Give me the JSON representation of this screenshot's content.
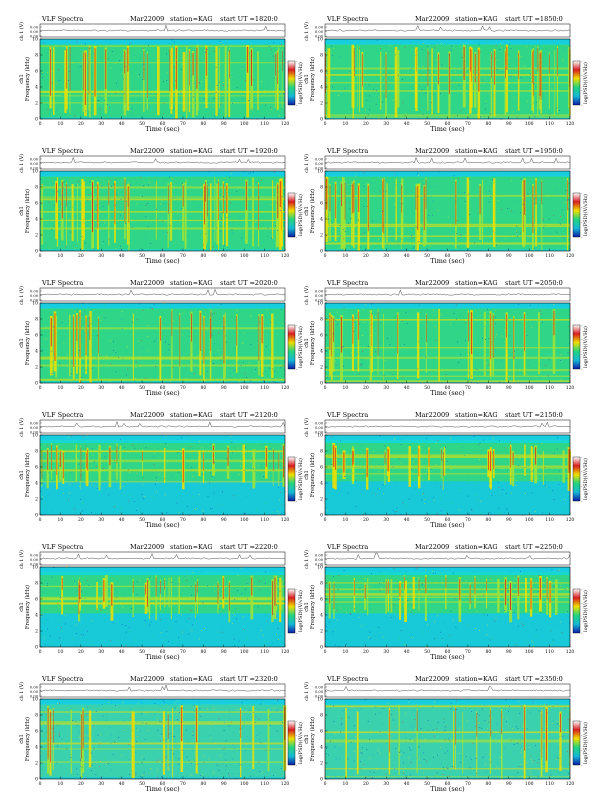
{
  "colors": {
    "spectrogram_background": "#17d7d2",
    "waveform_line": "#000000",
    "colorbar_gradient": [
      "#ffffff",
      "#d81e1e",
      "#f0e000",
      "#22d37e",
      "#16b9d6",
      "#0a1aa6"
    ]
  },
  "chart_data": [
    {
      "type": "heatmap",
      "header": {
        "left": "VLF Spectra",
        "date": "Mar22009",
        "station": "station=KAG",
        "start": "start  UT  =1820:0"
      },
      "waveform_ylabel": "ch 1 (V)",
      "waveform_ticks": [
        "0.00",
        "0.00",
        "0.00"
      ],
      "ylabel": "ch1\nFrequency (kHz)",
      "ylim": [
        0,
        10
      ],
      "yticks": [
        "0",
        "2",
        "4",
        "6",
        "8",
        "10"
      ],
      "xlabel": "Time (sec)",
      "xlim": [
        0,
        120
      ],
      "xticks": [
        "0",
        "10",
        "20",
        "30",
        "40",
        "50",
        "60",
        "70",
        "80",
        "90",
        "100",
        "110",
        "120"
      ],
      "colorbar_label": "log(PSD)(V/√Hz)",
      "colorbar_ticks": [
        "-",
        "-",
        "-",
        "-"
      ],
      "activity": "high"
    },
    {
      "type": "heatmap",
      "header": {
        "left": "VLF Spectra",
        "date": "Mar22009",
        "station": "station=KAG",
        "start": "start  UT  =1850:0"
      },
      "waveform_ylabel": "ch 1 (V)",
      "waveform_ticks": [
        "0.00",
        "0.00",
        "0.00"
      ],
      "ylabel": "ch1\nFrequency (kHz)",
      "ylim": [
        0,
        10
      ],
      "yticks": [
        "0",
        "2",
        "4",
        "6",
        "8",
        "10"
      ],
      "xlabel": "Time (sec)",
      "xlim": [
        0,
        120
      ],
      "xticks": [
        "0",
        "10",
        "20",
        "30",
        "40",
        "50",
        "60",
        "70",
        "80",
        "90",
        "100",
        "110",
        "120"
      ],
      "colorbar_label": "log(PSD)(V/√Hz)",
      "colorbar_ticks": [
        "-",
        "-",
        "-",
        "-"
      ],
      "activity": "high"
    },
    {
      "type": "heatmap",
      "header": {
        "left": "VLF Spectra",
        "date": "Mar22009",
        "station": "station=KAG",
        "start": "start  UT  =1920:0"
      },
      "waveform_ylabel": "ch 1 (V)",
      "waveform_ticks": [
        "0.00",
        "0.00",
        "0.00"
      ],
      "ylabel": "ch1\nFrequency (kHz)",
      "ylim": [
        0,
        10
      ],
      "yticks": [
        "0",
        "2",
        "4",
        "6",
        "8",
        "10"
      ],
      "xlabel": "Time (sec)",
      "xlim": [
        0,
        120
      ],
      "xticks": [
        "0",
        "10",
        "20",
        "30",
        "40",
        "50",
        "60",
        "70",
        "80",
        "90",
        "100",
        "110",
        "120"
      ],
      "colorbar_label": "log(PSD)(V/√Hz)",
      "colorbar_ticks": [
        "-",
        "-",
        "-",
        "-"
      ],
      "activity": "high"
    },
    {
      "type": "heatmap",
      "header": {
        "left": "VLF Spectra",
        "date": "Mar22009",
        "station": "station=KAG",
        "start": "start  UT  =1950:0"
      },
      "waveform_ylabel": "ch 1 (V)",
      "waveform_ticks": [
        "0.00",
        "0.00",
        "0.00"
      ],
      "ylabel": "ch1\nFrequency (kHz)",
      "ylim": [
        0,
        10
      ],
      "yticks": [
        "0",
        "2",
        "4",
        "6",
        "8",
        "10"
      ],
      "xlabel": "Time (sec)",
      "xlim": [
        0,
        120
      ],
      "xticks": [
        "0",
        "10",
        "20",
        "30",
        "40",
        "50",
        "60",
        "70",
        "80",
        "90",
        "100",
        "110",
        "120"
      ],
      "colorbar_label": "log(PSD)(V/√Hz)",
      "colorbar_ticks": [
        "-",
        "-",
        "-",
        "-"
      ],
      "activity": "high"
    },
    {
      "type": "heatmap",
      "header": {
        "left": "VLF Spectra",
        "date": "Mar22009",
        "station": "station=KAG",
        "start": "start  UT  =2020:0"
      },
      "waveform_ylabel": "ch 1 (V)",
      "waveform_ticks": [
        "0.00",
        "0.00",
        "0.00"
      ],
      "ylabel": "ch1\nFrequency (kHz)",
      "ylim": [
        0,
        10
      ],
      "yticks": [
        "0",
        "2",
        "4",
        "6",
        "8",
        "10"
      ],
      "xlabel": "Time (sec)",
      "xlim": [
        0,
        120
      ],
      "xticks": [
        "0",
        "10",
        "20",
        "30",
        "40",
        "50",
        "60",
        "70",
        "80",
        "90",
        "100",
        "110",
        "120"
      ],
      "colorbar_label": "log(PSD)(V/√Hz)",
      "colorbar_ticks": [
        "-",
        "-",
        "-",
        "-"
      ],
      "activity": "medium"
    },
    {
      "type": "heatmap",
      "header": {
        "left": "VLF Spectra",
        "date": "Mar22009",
        "station": "station=KAG",
        "start": "start  UT  =2050:0"
      },
      "waveform_ylabel": "ch 1 (V)",
      "waveform_ticks": [
        "0.00",
        "0.00",
        "0.00"
      ],
      "ylabel": "ch1\nFrequency (kHz)",
      "ylim": [
        0,
        10
      ],
      "yticks": [
        "0",
        "2",
        "4",
        "6",
        "8",
        "10"
      ],
      "xlabel": "Time (sec)",
      "xlim": [
        0,
        120
      ],
      "xticks": [
        "0",
        "10",
        "20",
        "30",
        "40",
        "50",
        "60",
        "70",
        "80",
        "90",
        "100",
        "110",
        "120"
      ],
      "colorbar_label": "log(PSD)(V/√Hz)",
      "colorbar_ticks": [
        "-",
        "-",
        "-",
        "-"
      ],
      "activity": "medium"
    },
    {
      "type": "heatmap",
      "header": {
        "left": "VLF Spectra",
        "date": "Mar22009",
        "station": "station=KAG",
        "start": "start  UT  =2120:0"
      },
      "waveform_ylabel": "ch 1 (V)",
      "waveform_ticks": [
        "0.00",
        "0.00",
        "0.00"
      ],
      "ylabel": "ch1\nFrequency (kHz)",
      "ylim": [
        0,
        10
      ],
      "yticks": [
        "0",
        "2",
        "4",
        "6",
        "8",
        "10"
      ],
      "xlabel": "Time (sec)",
      "xlim": [
        0,
        120
      ],
      "xticks": [
        "0",
        "10",
        "20",
        "30",
        "40",
        "50",
        "60",
        "70",
        "80",
        "90",
        "100",
        "110",
        "120"
      ],
      "colorbar_label": "log(PSD)(V/√Hz)",
      "colorbar_ticks": [
        "-",
        "-",
        "-",
        "-"
      ],
      "activity": "banded"
    },
    {
      "type": "heatmap",
      "header": {
        "left": "VLF Spectra",
        "date": "Mar22009",
        "station": "station=KAG",
        "start": "start  UT  =2150:0"
      },
      "waveform_ylabel": "ch 1 (V)",
      "waveform_ticks": [
        "0.00",
        "0.00",
        "0.00"
      ],
      "ylabel": "ch1\nFrequency (kHz)",
      "ylim": [
        0,
        10
      ],
      "yticks": [
        "0",
        "2",
        "4",
        "6",
        "8",
        "10"
      ],
      "xlabel": "Time (sec)",
      "xlim": [
        0,
        120
      ],
      "xticks": [
        "0",
        "10",
        "20",
        "30",
        "40",
        "50",
        "60",
        "70",
        "80",
        "90",
        "100",
        "110",
        "120"
      ],
      "colorbar_label": "log(PSD)(V/√Hz)",
      "colorbar_ticks": [
        "-",
        "-",
        "-",
        "-"
      ],
      "activity": "banded"
    },
    {
      "type": "heatmap",
      "header": {
        "left": "VLF Spectra",
        "date": "Mar22009",
        "station": "station=KAG",
        "start": "start  UT  =2220:0"
      },
      "waveform_ylabel": "ch 1 (V)",
      "waveform_ticks": [
        "0.00",
        "0.00",
        "0.00"
      ],
      "ylabel": "ch1\nFrequency (kHz)",
      "ylim": [
        0,
        10
      ],
      "yticks": [
        "0",
        "2",
        "4",
        "6",
        "8",
        "10"
      ],
      "xlabel": "Time (sec)",
      "xlim": [
        0,
        120
      ],
      "xticks": [
        "0",
        "10",
        "20",
        "30",
        "40",
        "50",
        "60",
        "70",
        "80",
        "90",
        "100",
        "110",
        "120"
      ],
      "colorbar_label": "log(PSD)(V/√Hz)",
      "colorbar_ticks": [
        "-",
        "-",
        "-",
        "-"
      ],
      "activity": "banded"
    },
    {
      "type": "heatmap",
      "header": {
        "left": "VLF Spectra",
        "date": "Mar22009",
        "station": "station=KAG",
        "start": "start  UT  =2250:0"
      },
      "waveform_ylabel": "ch 1 (V)",
      "waveform_ticks": [
        "0.00",
        "0.00",
        "0.00"
      ],
      "ylabel": "ch1\nFrequency (kHz)",
      "ylim": [
        0,
        10
      ],
      "yticks": [
        "0",
        "2",
        "4",
        "6",
        "8",
        "10"
      ],
      "xlabel": "Time (sec)",
      "xlim": [
        0,
        120
      ],
      "xticks": [
        "0",
        "10",
        "20",
        "30",
        "40",
        "50",
        "60",
        "70",
        "80",
        "90",
        "100",
        "110",
        "120"
      ],
      "colorbar_label": "log(PSD)(V/√Hz)",
      "colorbar_ticks": [
        "-",
        "-",
        "-",
        "-"
      ],
      "activity": "banded"
    },
    {
      "type": "heatmap",
      "header": {
        "left": "VLF Spectra",
        "date": "Mar22009",
        "station": "station=KAG",
        "start": "start  UT  =2320:0"
      },
      "waveform_ylabel": "ch 1 (V)",
      "waveform_ticks": [
        "0.00",
        "0.00",
        "0.00"
      ],
      "ylabel": "ch1\nFrequency (kHz)",
      "ylim": [
        0,
        10
      ],
      "yticks": [
        "0",
        "2",
        "4",
        "6",
        "8",
        "10"
      ],
      "xlabel": "Time (sec)",
      "xlim": [
        0,
        120
      ],
      "xticks": [
        "0",
        "10",
        "20",
        "30",
        "40",
        "50",
        "60",
        "70",
        "80",
        "90",
        "100",
        "110",
        "120"
      ],
      "colorbar_label": "log(PSD)(V/√Hz)",
      "colorbar_ticks": [
        "-",
        "-",
        "-",
        "-"
      ],
      "activity": "low"
    },
    {
      "type": "heatmap",
      "header": {
        "left": "VLF Spectra",
        "date": "Mar22009",
        "station": "station=KAG",
        "start": "start  UT  =2350:0"
      },
      "waveform_ylabel": "ch 1 (V)",
      "waveform_ticks": [
        "0.00",
        "0.00",
        "0.00"
      ],
      "ylabel": "ch1\nFrequency (kHz)",
      "ylim": [
        0,
        10
      ],
      "yticks": [
        "0",
        "2",
        "4",
        "6",
        "8",
        "10"
      ],
      "xlabel": "Time (sec)",
      "xlim": [
        0,
        120
      ],
      "xticks": [
        "0",
        "10",
        "20",
        "30",
        "40",
        "50",
        "60",
        "70",
        "80",
        "90",
        "100",
        "110",
        "120"
      ],
      "colorbar_label": "log(PSD)(V/√Hz)",
      "colorbar_ticks": [
        "-",
        "-",
        "-",
        "-"
      ],
      "activity": "low"
    }
  ]
}
